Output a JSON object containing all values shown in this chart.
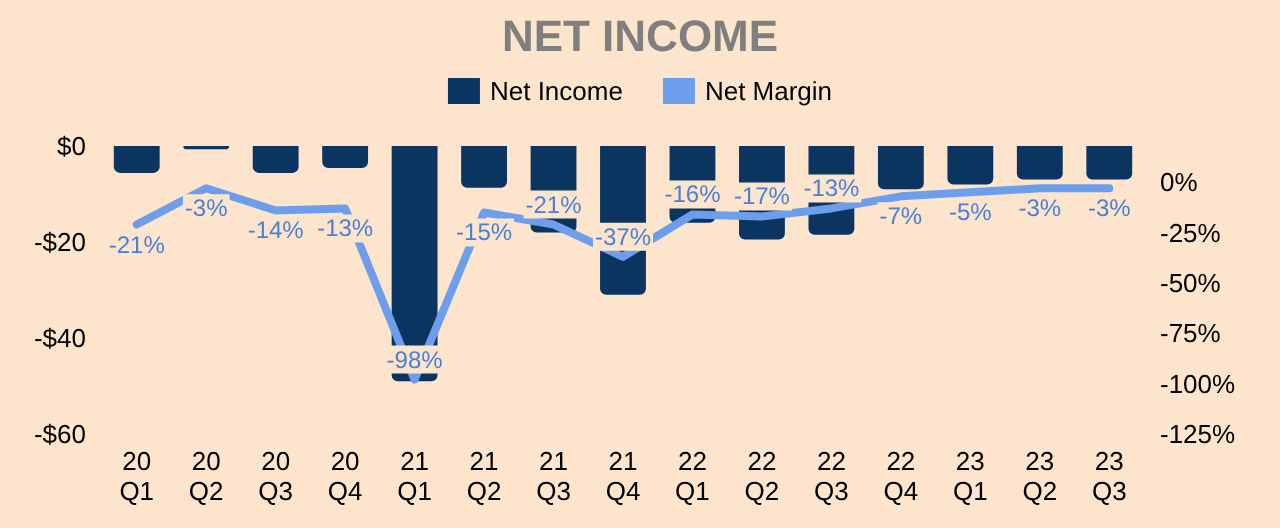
{
  "chart_data": {
    "type": "bar",
    "title": "NET INCOME",
    "categories": [
      "20\nQ1",
      "20\nQ2",
      "20\nQ3",
      "20\nQ4",
      "21\nQ1",
      "21\nQ2",
      "21\nQ3",
      "21\nQ4",
      "22\nQ1",
      "22\nQ2",
      "22\nQ3",
      "22\nQ4",
      "23\nQ1",
      "23\nQ2",
      "23\nQ3"
    ],
    "series": [
      {
        "name": "Net Income",
        "color": "#0b3560",
        "values": [
          -5.6,
          -0.7,
          -5.6,
          -4.6,
          -49,
          -8.7,
          -18,
          -31,
          -16,
          -19.5,
          -18.5,
          -9,
          -8,
          -7,
          -7
        ]
      },
      {
        "name": "Net Margin",
        "type": "line",
        "axis": "y2",
        "color": "#6d9eeb",
        "values": [
          -21,
          -3,
          -14,
          -13,
          -98,
          -15,
          -21,
          -37,
          -16,
          -17,
          -13,
          -7,
          -5,
          -3,
          -3
        ],
        "value_labels": [
          "-21%",
          "-3%",
          "-14%",
          "-13%",
          "-98%",
          "-15%",
          "-21%",
          "-37%",
          "-16%",
          "-17%",
          "-13%",
          "-7%",
          "-5%",
          "-3%",
          "-3%"
        ]
      }
    ],
    "ylim": [
      -60,
      0
    ],
    "yticks": [
      {
        "value": -60,
        "label": "-$60"
      },
      {
        "value": -40,
        "label": "-$40"
      },
      {
        "value": -20,
        "label": "-$20"
      },
      {
        "value": 0,
        "label": "$0"
      }
    ],
    "y2lim": [
      -125,
      18
    ],
    "y2ticks": [
      {
        "value": -125,
        "label": "-125%"
      },
      {
        "value": -100,
        "label": "-100%"
      },
      {
        "value": -75,
        "label": "-75%"
      },
      {
        "value": -50,
        "label": "-50%"
      },
      {
        "value": -25,
        "label": "-25%"
      },
      {
        "value": 0,
        "label": "0%"
      }
    ],
    "grid": false,
    "legend": "top",
    "marker": "none",
    "line_style": "solid"
  }
}
